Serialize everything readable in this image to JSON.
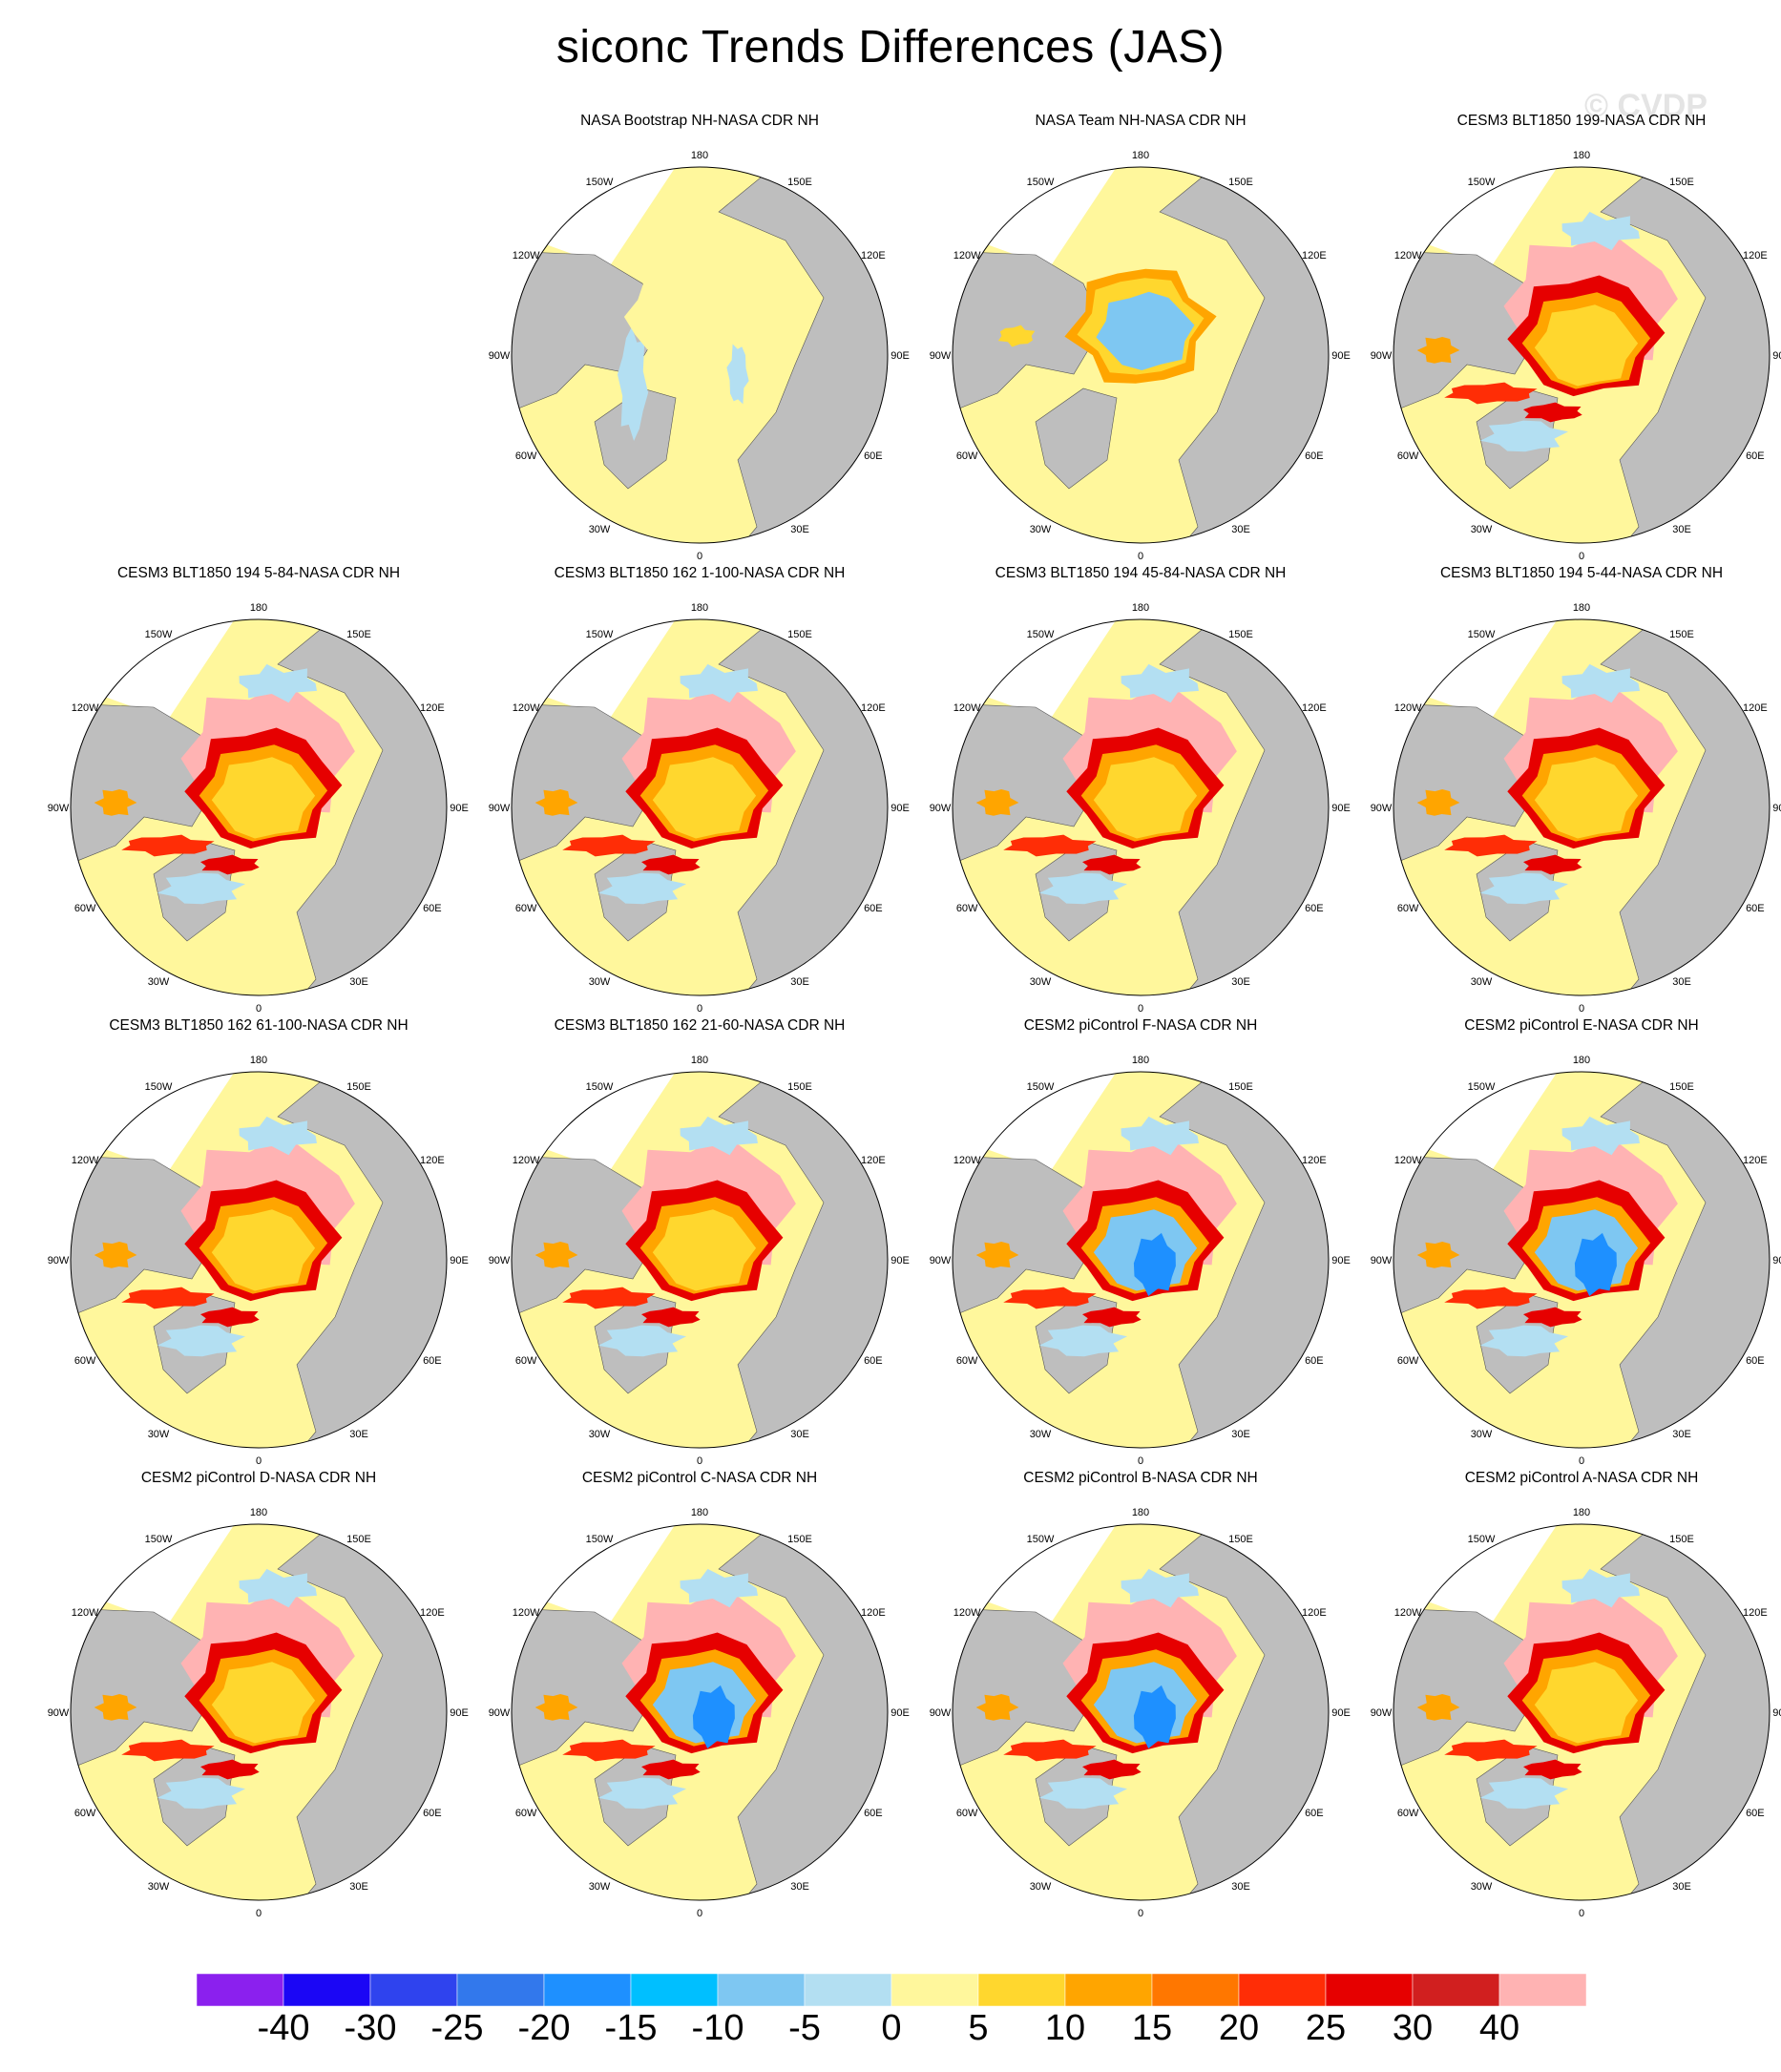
{
  "title": "siconc Trends Differences (JAS)",
  "watermark": "© CVDP",
  "lon_labels": [
    "180",
    "150E",
    "120E",
    "90E",
    "60E",
    "30E",
    "0",
    "30W",
    "60W",
    "90W",
    "120W",
    "150W"
  ],
  "colors": {
    "land": "#bebebe",
    "white_region": "#ffffff",
    "ocean_zero": "#fff79c"
  },
  "panels": [
    {
      "title": "NASA Bootstrap NH-NASA CDR NH",
      "pattern": "bootstrap"
    },
    {
      "title": "NASA Team NH-NASA CDR NH",
      "pattern": "team"
    },
    {
      "title": "CESM3 BLT1850 199-NASA CDR NH",
      "pattern": "model"
    },
    {
      "title": "CESM3 BLT1850 194 5-84-NASA CDR NH",
      "pattern": "model"
    },
    {
      "title": "CESM3 BLT1850 162 1-100-NASA CDR NH",
      "pattern": "model"
    },
    {
      "title": "CESM3 BLT1850 194 45-84-NASA CDR NH",
      "pattern": "model"
    },
    {
      "title": "CESM3 BLT1850 194 5-44-NASA CDR NH",
      "pattern": "model"
    },
    {
      "title": "CESM3 BLT1850 162 61-100-NASA CDR NH",
      "pattern": "model"
    },
    {
      "title": "CESM3 BLT1850 162 21-60-NASA CDR NH",
      "pattern": "model"
    },
    {
      "title": "CESM2 piControl F-NASA CDR NH",
      "pattern": "modelblue"
    },
    {
      "title": "CESM2 piControl E-NASA CDR NH",
      "pattern": "modelblue"
    },
    {
      "title": "CESM2 piControl D-NASA CDR NH",
      "pattern": "model"
    },
    {
      "title": "CESM2 piControl C-NASA CDR NH",
      "pattern": "modelblue"
    },
    {
      "title": "CESM2 piControl B-NASA CDR NH",
      "pattern": "modelblue"
    },
    {
      "title": "CESM2 piControl A-NASA CDR NH",
      "pattern": "model"
    }
  ],
  "colorbar": {
    "colors": [
      "#8b20ee",
      "#1b06f5",
      "#2f43ee",
      "#3278ec",
      "#1e90ff",
      "#00bfff",
      "#7ec7f2",
      "#b3dff2",
      "#fff79c",
      "#ffd72e",
      "#ffa500",
      "#ff7700",
      "#ff2d06",
      "#e60000",
      "#d11f1f",
      "#ffb3b3"
    ],
    "labels": [
      "-40",
      "-30",
      "-25",
      "-20",
      "-15",
      "-10",
      "-5",
      "0",
      "5",
      "10",
      "15",
      "20",
      "25",
      "30",
      "40"
    ]
  }
}
